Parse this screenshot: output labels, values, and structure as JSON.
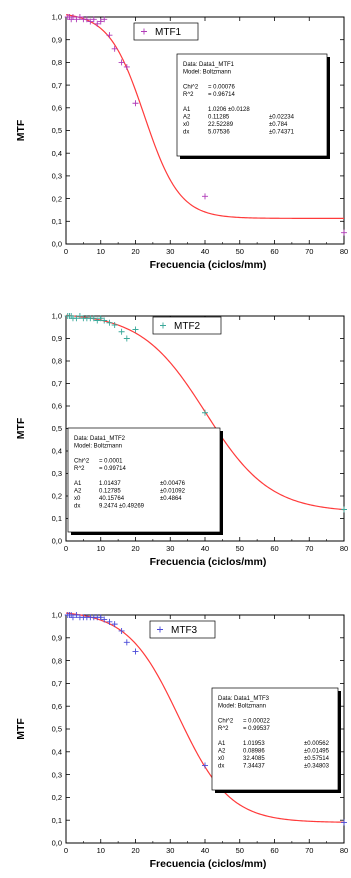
{
  "chart_data": [
    {
      "type": "scatter",
      "xlabel": "Frecuencia (ciclos/mm)",
      "ylabel": "MTF",
      "xlim": [
        0,
        80
      ],
      "ylim": [
        0.0,
        1.0
      ],
      "x_ticks": [
        "0",
        "10",
        "20",
        "30",
        "40",
        "50",
        "60",
        "70",
        "80"
      ],
      "y_ticks": [
        "0,0",
        "0,1",
        "0,2",
        "0,3",
        "0,4",
        "0,5",
        "0,6",
        "0,7",
        "0,8",
        "0,9",
        "1,0"
      ],
      "legend": {
        "label": "MTF1",
        "position": "top-right"
      },
      "colors": {
        "points": "#b03ab8",
        "fit": "#ff3b3b"
      },
      "series": [
        {
          "name": "MTF1",
          "x": [
            0.5,
            1,
            1.5,
            2,
            3,
            4,
            5,
            6,
            7,
            8,
            9,
            10,
            11,
            12.5,
            14,
            16,
            17.5,
            20,
            40,
            80
          ],
          "y": [
            1.0,
            1.0,
            0.99,
            1.0,
            0.99,
            1.0,
            0.99,
            0.99,
            0.98,
            0.99,
            0.97,
            0.98,
            0.99,
            0.92,
            0.86,
            0.8,
            0.78,
            0.62,
            0.21,
            0.05
          ]
        }
      ],
      "fit": {
        "model": "Boltzmann",
        "A1": 1.0206,
        "A2": 0.11285,
        "x0": 22.52289,
        "dx": 5.07536
      },
      "stats_box": {
        "position": "right",
        "lines": [
          [
            "Data: Data1_MTF1"
          ],
          [
            "Model: Boltzmann"
          ],
          [
            ""
          ],
          [
            "Chi^2",
            "= 0.00076"
          ],
          [
            "R^2",
            "= 0.96714"
          ],
          [
            ""
          ],
          [
            "A1",
            "1.0206  ±0.0128"
          ],
          [
            "A2",
            "0.11285",
            "±0.02234"
          ],
          [
            "x0",
            "22.52289",
            "±0.784"
          ],
          [
            "dx",
            "5.07536",
            "±0.74371"
          ]
        ]
      }
    },
    {
      "type": "scatter",
      "xlabel": "Frecuencia (ciclos/mm)",
      "ylabel": "MTF",
      "xlim": [
        0,
        80
      ],
      "ylim": [
        0.0,
        1.0
      ],
      "x_ticks": [
        "0",
        "10",
        "20",
        "30",
        "40",
        "50",
        "60",
        "70",
        "80"
      ],
      "y_ticks": [
        "0,0",
        "0,1",
        "0,2",
        "0,3",
        "0,4",
        "0,5",
        "0,6",
        "0,7",
        "0,8",
        "0,9",
        "1,0"
      ],
      "legend": {
        "label": "MTF2",
        "position": "top-right"
      },
      "colors": {
        "points": "#3aa89a",
        "fit": "#ff3b3b"
      },
      "series": [
        {
          "name": "MTF2",
          "x": [
            0.5,
            1,
            1.5,
            2,
            3,
            4,
            5,
            6,
            7,
            8,
            9,
            10,
            11,
            12.5,
            14,
            16,
            17.5,
            20,
            40,
            80
          ],
          "y": [
            1.0,
            1.0,
            1.0,
            0.99,
            0.99,
            1.0,
            0.99,
            0.99,
            0.99,
            0.99,
            0.98,
            0.99,
            0.98,
            0.97,
            0.96,
            0.93,
            0.9,
            0.94,
            0.57,
            0.14
          ]
        }
      ],
      "fit": {
        "model": "Boltzmann",
        "A1": 1.01437,
        "A2": 0.12785,
        "x0": 40.15764,
        "dx": 9.2474
      },
      "stats_box": {
        "position": "bottom-left",
        "lines": [
          [
            "Data: Data1_MTF2"
          ],
          [
            "Model: Boltzmann"
          ],
          [
            ""
          ],
          [
            "Chi^2",
            "= 0.0001"
          ],
          [
            "R^2",
            "= 0.99714"
          ],
          [
            ""
          ],
          [
            "A1",
            "1.01437",
            "±0.00476"
          ],
          [
            "A2",
            "0.12785",
            "±0.01092"
          ],
          [
            "x0",
            "40.15764",
            "±0.4864"
          ],
          [
            "dx",
            "9.2474  ±0.49269"
          ]
        ]
      }
    },
    {
      "type": "scatter",
      "xlabel": "Frecuencia (ciclos/mm)",
      "ylabel": "MTF",
      "xlim": [
        0,
        80
      ],
      "ylim": [
        0.0,
        1.0
      ],
      "x_ticks": [
        "0",
        "10",
        "20",
        "30",
        "40",
        "50",
        "60",
        "70",
        "80"
      ],
      "y_ticks": [
        "0,0",
        "0,1",
        "0,2",
        "0,3",
        "0,4",
        "0,5",
        "0,6",
        "0,7",
        "0,8",
        "0,9",
        "1,0"
      ],
      "legend": {
        "label": "MTF3",
        "position": "top"
      },
      "colors": {
        "points": "#4a4ad8",
        "fit": "#ff3b3b"
      },
      "series": [
        {
          "name": "MTF3",
          "x": [
            0.5,
            1,
            1.5,
            2,
            3,
            4,
            5,
            6,
            7,
            8,
            9,
            10,
            11,
            12.5,
            14,
            16,
            17.5,
            20,
            40,
            80
          ],
          "y": [
            1.0,
            1.0,
            1.0,
            0.99,
            1.0,
            0.99,
            0.99,
            0.99,
            0.99,
            0.99,
            0.99,
            0.99,
            0.98,
            0.97,
            0.96,
            0.93,
            0.88,
            0.84,
            0.34,
            0.09
          ]
        }
      ],
      "fit": {
        "model": "Boltzmann",
        "A1": 1.01953,
        "A2": 0.08986,
        "x0": 32.4085,
        "dx": 7.34437
      },
      "stats_box": {
        "position": "right",
        "lines": [
          [
            "Data: Data1_MTF3"
          ],
          [
            "Model: Boltzmann"
          ],
          [
            ""
          ],
          [
            "Chi^2",
            "= 0.00022"
          ],
          [
            "R^2",
            "= 0.99537"
          ],
          [
            ""
          ],
          [
            "A1",
            "1.01953",
            "±0.00562"
          ],
          [
            "A2",
            "0.08986",
            "±0.01495"
          ],
          [
            "x0",
            "32.4085",
            "±0.57514"
          ],
          [
            "dx",
            "7.34437",
            "±0.34803"
          ]
        ]
      }
    }
  ]
}
